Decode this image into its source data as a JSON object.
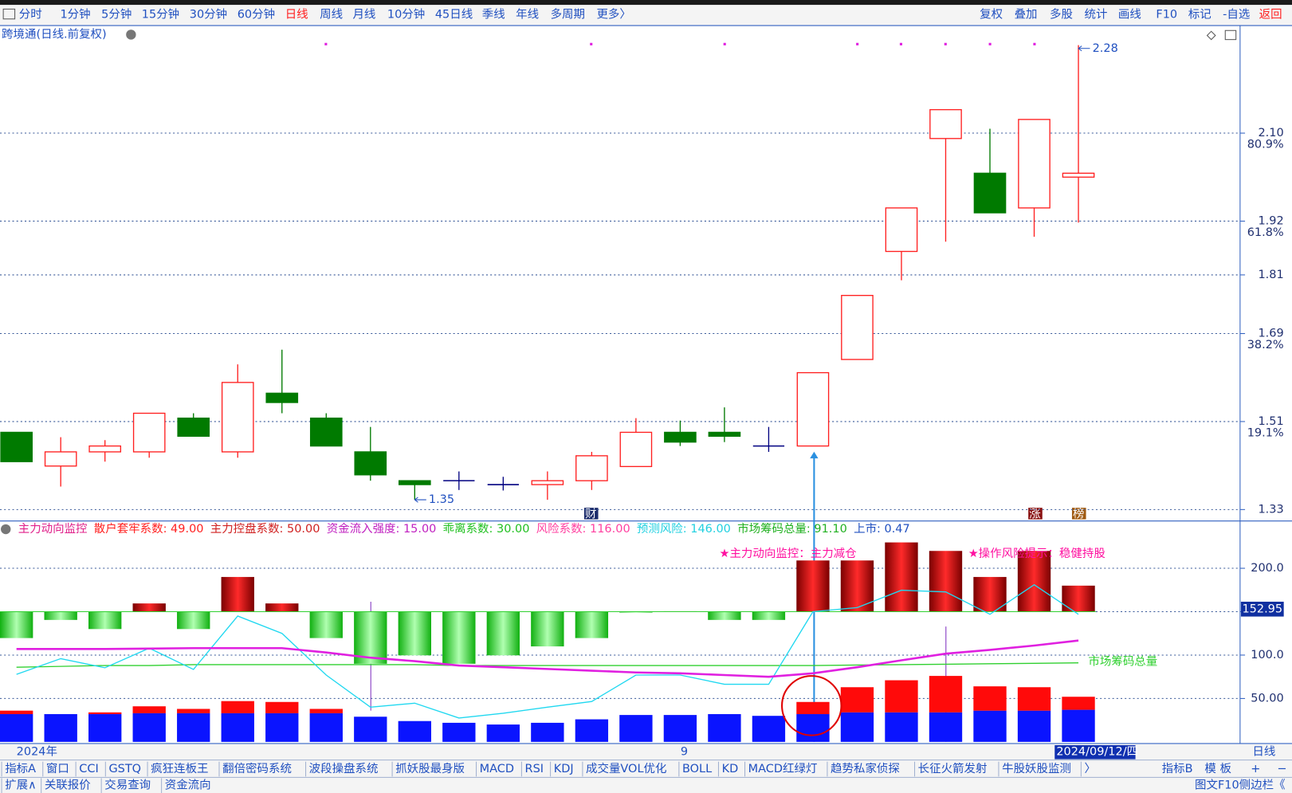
{
  "toolbar": {
    "left": [
      {
        "text": "分时",
        "color": "#2050c0"
      },
      {
        "text": "1分钟",
        "color": "#2050c0"
      },
      {
        "text": "5分钟",
        "color": "#2050c0"
      },
      {
        "text": "15分钟",
        "color": "#2050c0"
      },
      {
        "text": "30分钟",
        "color": "#2050c0"
      },
      {
        "text": "60分钟",
        "color": "#2050c0"
      },
      {
        "text": "日线",
        "color": "#ff2020"
      },
      {
        "text": "周线",
        "color": "#2050c0"
      },
      {
        "text": "月线",
        "color": "#2050c0"
      },
      {
        "text": "10分钟",
        "color": "#2050c0"
      },
      {
        "text": "45日线",
        "color": "#2050c0"
      },
      {
        "text": "季线",
        "color": "#2050c0"
      },
      {
        "text": "年线",
        "color": "#2050c0"
      },
      {
        "text": "多周期",
        "color": "#2050c0"
      },
      {
        "text": "更多〉",
        "color": "#2050c0"
      }
    ],
    "right": [
      {
        "text": "复权",
        "color": "#2050c0"
      },
      {
        "text": "叠加",
        "color": "#2050c0"
      },
      {
        "text": "多股",
        "color": "#2050c0"
      },
      {
        "text": "统计",
        "color": "#2050c0"
      },
      {
        "text": "画线",
        "color": "#2050c0"
      },
      {
        "text": "F10",
        "color": "#2050c0"
      },
      {
        "text": "标记",
        "color": "#2050c0"
      },
      {
        "text": "-自选",
        "color": "#2050c0"
      },
      {
        "text": "返回",
        "color": "#ff2020"
      }
    ]
  },
  "chart_data": [
    {
      "type": "candlestick",
      "title": "跨境通(日线.前复权)",
      "ylim": [
        1.31,
        2.315
      ],
      "yticks": [
        1.33,
        1.51,
        1.69,
        1.81,
        1.92,
        {
          "value": 2.1,
          "label": "2.10"
        }
      ],
      "fib_ticks": [
        {
          "value": 1.51,
          "label": "19.1%"
        },
        {
          "value": 1.69,
          "label": "38.2%"
        },
        {
          "value": 1.92,
          "label": "61.8%"
        },
        {
          "value": 2.1,
          "label": "80.9%"
        }
      ],
      "grid": true,
      "up_color": "#ff2020",
      "down_color": "#007a00",
      "flat_color": "#000080",
      "open": [
        1.488,
        1.419,
        1.448,
        1.448,
        1.517,
        1.448,
        1.568,
        1.517,
        1.448,
        1.389,
        1.389,
        1.381,
        1.381,
        1.389,
        1.418,
        1.488,
        1.488,
        1.46,
        1.46,
        1.637,
        1.858,
        2.089,
        2.018,
        1.947,
        2.01
      ],
      "high": [
        1.488,
        1.478,
        1.472,
        1.527,
        1.527,
        1.627,
        1.657,
        1.527,
        1.499,
        1.389,
        1.408,
        1.397,
        1.408,
        1.448,
        1.517,
        1.512,
        1.539,
        1.499,
        1.61,
        1.768,
        1.947,
        2.148,
        2.109,
        2.128,
        2.28
      ],
      "low": [
        1.428,
        1.377,
        1.428,
        1.436,
        1.48,
        1.436,
        1.527,
        1.46,
        1.389,
        1.35,
        1.37,
        1.369,
        1.35,
        1.37,
        1.418,
        1.46,
        1.468,
        1.448,
        1.46,
        1.637,
        1.799,
        1.878,
        1.937,
        1.888,
        1.917
      ],
      "close": [
        1.428,
        1.448,
        1.46,
        1.527,
        1.48,
        1.59,
        1.549,
        1.46,
        1.401,
        1.381,
        1.389,
        1.381,
        1.389,
        1.44,
        1.488,
        1.468,
        1.48,
        1.46,
        1.61,
        1.768,
        1.947,
        2.148,
        1.937,
        2.128,
        2.018
      ],
      "annotations": [
        {
          "text": "1.35"
        },
        {
          "text": "2.28"
        }
      ],
      "markers": [
        "财",
        "涨",
        "榜"
      ],
      "x_labels": [
        "2024年",
        "9"
      ],
      "cursor_date": "2024/09/12/四",
      "period": "日线"
    },
    {
      "type": "indicator",
      "title": "主力动向监控",
      "legend": [
        {
          "text": "散户套牢系数: 49.00",
          "color": "#ff2020"
        },
        {
          "text": "主力控盘系数: 50.00",
          "color": "#d02020"
        },
        {
          "text": "资金流入强度: 15.00",
          "color": "#c020c0"
        },
        {
          "text": "乖离系数: 30.00",
          "color": "#20c020"
        },
        {
          "text": "风险系数: 116.00",
          "color": "#ff40a0"
        },
        {
          "text": "预测风险: 146.00",
          "color": "#20d0e0"
        },
        {
          "text": "市场筹码总量: 91.10",
          "color": "#20b020"
        },
        {
          "text": "上市: 0.47",
          "color": "#2050c0"
        }
      ],
      "ylim": [
        0,
        252.6
      ],
      "yticks": [
        {
          "value": 200,
          "label": "200.0"
        },
        {
          "value": 150,
          "label": "150.0"
        },
        {
          "value": 100,
          "label": "100.0"
        },
        {
          "value": 50,
          "label": "50.00"
        }
      ],
      "grid": true,
      "baseline": 150,
      "main_force": {
        "up_color": "#d00000",
        "down_color": "#10d010",
        "values": [
          119.6,
          140.5,
          130,
          159.5,
          130,
          190,
          159.5,
          119.6,
          90,
          99.7,
          90,
          99.7,
          110,
          119.6,
          149.5,
          150.5,
          140.5,
          140.5,
          209,
          209,
          229.8,
          220,
          190,
          220,
          180
        ]
      },
      "stack": [
        {
          "color": "#0a14ff",
          "values": [
            32,
            32,
            32,
            33,
            33,
            33,
            33,
            33,
            29,
            24,
            22,
            20,
            22,
            26,
            31,
            31,
            32,
            30,
            32,
            34,
            34,
            34,
            36,
            36,
            37
          ]
        },
        {
          "color": "#ff0a0a",
          "values": [
            4,
            0,
            2,
            8,
            5,
            14,
            13,
            5,
            0,
            0,
            0,
            0,
            0,
            0,
            0,
            0,
            0,
            0,
            14,
            29,
            37,
            42,
            28,
            27,
            15
          ]
        }
      ],
      "lines": [
        {
          "name": "市场筹码总量",
          "color": "#30d030",
          "values": [
            86,
            87,
            88,
            88,
            89,
            89,
            89,
            89,
            89,
            89,
            88,
            88,
            88,
            88,
            88,
            88,
            88,
            88,
            88,
            88.5,
            89,
            89.5,
            90,
            90.5,
            91.1
          ]
        },
        {
          "color": "#20d8f0",
          "values": [
            77.8,
            95.9,
            85.4,
            108,
            83.5,
            145,
            125,
            77,
            40,
            44.6,
            27.5,
            33,
            40,
            46.5,
            77,
            77,
            66.4,
            66.4,
            150,
            154.7,
            174.7,
            172.8,
            147,
            181,
            147
          ]
        },
        {
          "color": "#e020e0",
          "values": [
            107,
            107,
            107,
            107.5,
            108,
            108,
            108,
            103,
            97,
            93,
            88,
            86,
            84,
            82,
            80,
            79,
            77,
            75,
            79,
            86,
            94,
            101.6,
            106,
            111,
            116.8
          ]
        }
      ],
      "current": {
        "value": 152.95,
        "label": "152.95"
      },
      "notes": [
        "★主力动向监控：主力减仓",
        "★操作风险提示：稳健持股"
      ]
    }
  ],
  "tabs": {
    "left": [
      "指标A",
      "窗口",
      "CCI",
      "GSTQ",
      "疯狂连板王",
      "翻倍密码系统",
      "波段操盘系统",
      "抓妖股最身版",
      "MACD",
      "RSI",
      "KDJ",
      "成交量VOL优化",
      "BOLL",
      "KD",
      "MACD红绿灯",
      "趋势私家侦探",
      "长征火箭发射",
      "牛股妖股监测",
      "〉"
    ],
    "right": [
      "指标B",
      "模 板",
      "+",
      "−"
    ]
  },
  "footer": {
    "left": [
      "扩展∧",
      "关联报价",
      "交易查询",
      "资金流向"
    ],
    "right": "图文F10侧边栏《"
  }
}
